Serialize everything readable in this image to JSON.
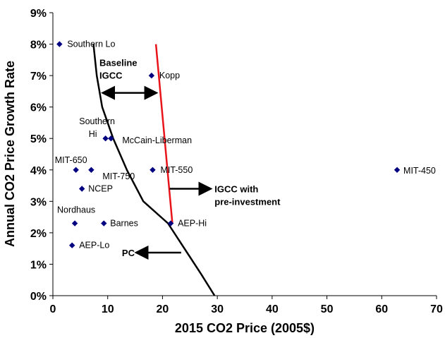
{
  "chart_data": {
    "type": "scatter",
    "xlabel": "2015 CO2 Price (2005$)",
    "ylabel": "Annual CO2 Price Growth Rate",
    "xlim": [
      0,
      70
    ],
    "ylim": [
      0,
      9
    ],
    "xticks": [
      0,
      10,
      20,
      30,
      40,
      50,
      60,
      70
    ],
    "yticks": [
      "0%",
      "1%",
      "2%",
      "3%",
      "4%",
      "5%",
      "6%",
      "7%",
      "8%",
      "9%"
    ],
    "grid": false,
    "marker_color": "#000080",
    "points": [
      {
        "label": "Southern Lo",
        "x": 1.2,
        "y": 8.0
      },
      {
        "label": "Kopp",
        "x": 18.0,
        "y": 7.0
      },
      {
        "label": "Southern Hi",
        "x": 9.6,
        "y": 5.0
      },
      {
        "label": "McCain-Liberman",
        "x": 10.6,
        "y": 5.0
      },
      {
        "label": "MIT-650",
        "x": 4.2,
        "y": 4.0
      },
      {
        "label": "MIT-750",
        "x": 7.0,
        "y": 4.0
      },
      {
        "label": "MIT-550",
        "x": 18.2,
        "y": 4.0
      },
      {
        "label": "MIT-450",
        "x": 62.8,
        "y": 4.0
      },
      {
        "label": "NCEP",
        "x": 5.3,
        "y": 3.4
      },
      {
        "label": "Nordhaus",
        "x": 4.0,
        "y": 2.3
      },
      {
        "label": "Barnes",
        "x": 9.3,
        "y": 2.3
      },
      {
        "label": "AEP-Hi",
        "x": 21.5,
        "y": 2.3
      },
      {
        "label": "AEP-Lo",
        "x": 3.5,
        "y": 1.6
      }
    ],
    "lines": [
      {
        "name": "PC",
        "color": "#000000",
        "points": [
          [
            7.4,
            8.0
          ],
          [
            8.0,
            7.0
          ],
          [
            9.0,
            6.0
          ],
          [
            11.0,
            5.0
          ],
          [
            13.5,
            4.0
          ],
          [
            16.5,
            3.0
          ],
          [
            21.0,
            2.3
          ],
          [
            24.0,
            1.5
          ],
          [
            27.0,
            0.7
          ],
          [
            29.5,
            0.0
          ]
        ]
      },
      {
        "name": "IGCC",
        "color": "#e8141a",
        "points": [
          [
            18.8,
            8.0
          ],
          [
            21.8,
            2.3
          ]
        ]
      }
    ],
    "annotations": [
      {
        "lines": [
          "Baseline",
          "IGCC"
        ]
      },
      {
        "lines": [
          "IGCC with",
          "pre-investment"
        ]
      },
      {
        "lines": [
          "PC"
        ]
      }
    ]
  }
}
